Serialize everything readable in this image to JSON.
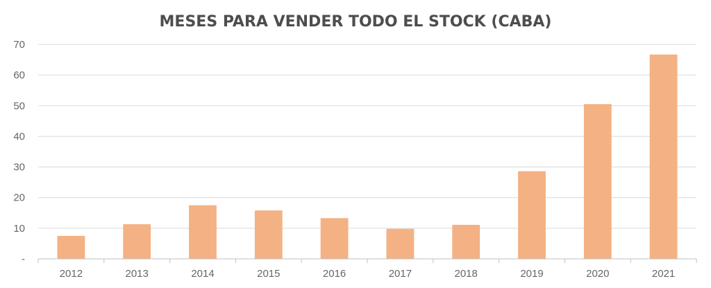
{
  "chart_data": {
    "type": "bar",
    "title": "MESES PARA VENDER TODO EL STOCK (CABA)",
    "xlabel": "",
    "ylabel": "",
    "categories": [
      "2012",
      "2013",
      "2014",
      "2015",
      "2016",
      "2017",
      "2018",
      "2019",
      "2020",
      "2021"
    ],
    "values": [
      7.5,
      11.3,
      17.5,
      15.8,
      13.3,
      9.8,
      11.1,
      28.6,
      50.5,
      66.7
    ],
    "ylim": [
      0,
      70
    ],
    "yticks": [
      0,
      10,
      20,
      30,
      40,
      50,
      60,
      70
    ],
    "ytick_labels": [
      "-",
      "10",
      "20",
      "30",
      "40",
      "50",
      "60",
      "70"
    ],
    "grid": true,
    "legend": "none",
    "bar_color": "#f4b183",
    "grid_color": "#d9d9d9",
    "title_color": "#4d4d4d",
    "tick_color": "#666666"
  }
}
